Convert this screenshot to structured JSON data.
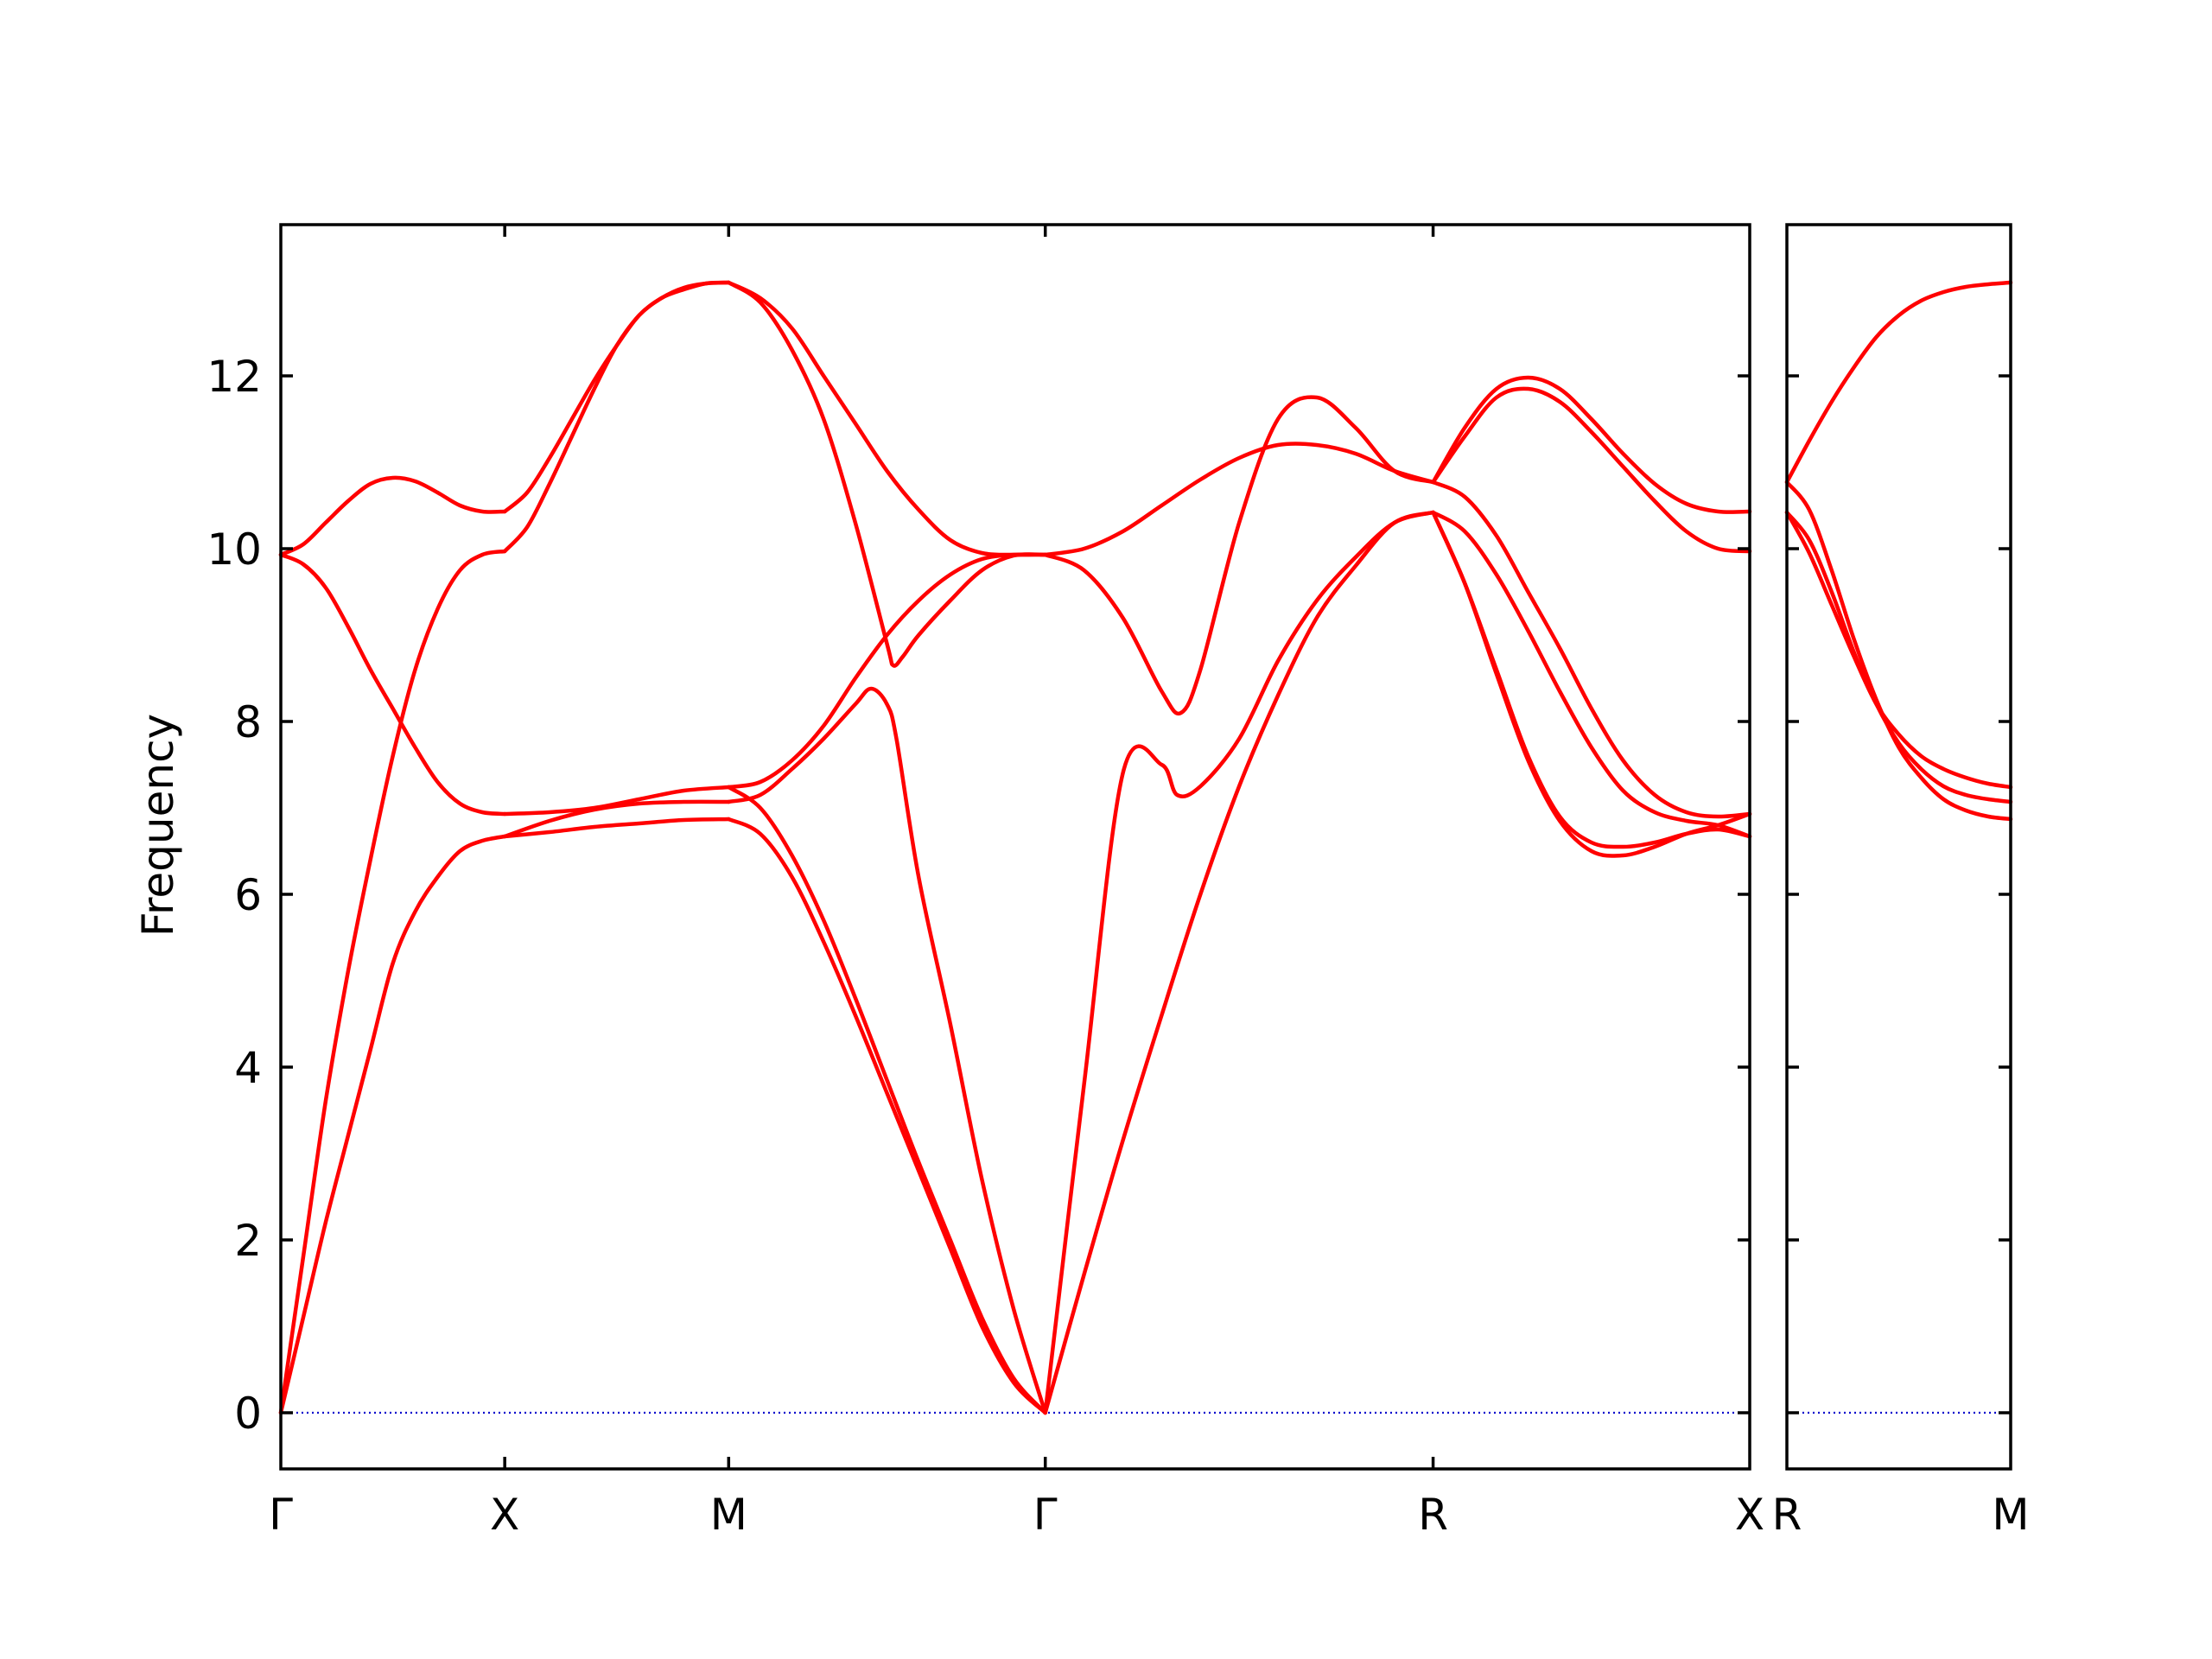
{
  "chart_data": {
    "type": "line",
    "ylabel": "Frequency",
    "xlabel": "",
    "ylim": [
      -0.65,
      13.75
    ],
    "yticks": [
      0,
      2,
      4,
      6,
      8,
      10,
      12
    ],
    "grid": false,
    "line_color": "#ff0000",
    "zero_line_color": "#0000cc",
    "panels": [
      {
        "segments": [
          {
            "from": "Γ",
            "to": "X",
            "length": 1.0,
            "bands": [
              {
                "x": [
                  0,
                  0.1,
                  0.2,
                  0.3,
                  0.4,
                  0.5,
                  0.6,
                  0.7,
                  0.8,
                  0.9,
                  1.0
                ],
                "y": [
                  0,
                  1.1,
                  2.2,
                  3.2,
                  4.2,
                  5.2,
                  5.8,
                  6.2,
                  6.5,
                  6.62,
                  6.67
                ]
              },
              {
                "x": [
                  0,
                  0.1,
                  0.2,
                  0.3,
                  0.4,
                  0.5,
                  0.6,
                  0.7,
                  0.8,
                  0.9,
                  1.0
                ],
                "y": [
                  0,
                  1.8,
                  3.6,
                  5.1,
                  6.4,
                  7.6,
                  8.6,
                  9.3,
                  9.75,
                  9.93,
                  9.97
                ]
              },
              {
                "x": [
                  0,
                  0.1,
                  0.2,
                  0.3,
                  0.4,
                  0.5,
                  0.6,
                  0.7,
                  0.8,
                  0.9,
                  1.0
                ],
                "y": [
                  9.93,
                  9.82,
                  9.55,
                  9.1,
                  8.6,
                  8.15,
                  7.7,
                  7.3,
                  7.05,
                  6.95,
                  6.93
                ]
              },
              {
                "x": [
                  0,
                  0.1,
                  0.2,
                  0.3,
                  0.4,
                  0.5,
                  0.6,
                  0.7,
                  0.8,
                  0.9,
                  1.0
                ],
                "y": [
                  9.93,
                  10.05,
                  10.3,
                  10.55,
                  10.75,
                  10.82,
                  10.78,
                  10.65,
                  10.5,
                  10.43,
                  10.43
                ]
              }
            ]
          },
          {
            "from": "X",
            "to": "M",
            "length": 1.0,
            "bands": [
              {
                "x": [
                  0,
                  0.2,
                  0.4,
                  0.6,
                  0.8,
                  1.0
                ],
                "y": [
                  6.67,
                  6.72,
                  6.78,
                  6.82,
                  6.86,
                  6.87
                ]
              },
              {
                "x": [
                  0,
                  0.2,
                  0.4,
                  0.6,
                  0.8,
                  1.0
                ],
                "y": [
                  6.67,
                  6.85,
                  6.98,
                  7.05,
                  7.07,
                  7.07
                ]
              },
              {
                "x": [
                  0,
                  0.2,
                  0.4,
                  0.6,
                  0.8,
                  1.0
                ],
                "y": [
                  6.93,
                  6.95,
                  7.0,
                  7.1,
                  7.2,
                  7.24
                ]
              },
              {
                "x": [
                  0,
                  0.1,
                  0.2,
                  0.3,
                  0.4,
                  0.5,
                  0.6,
                  0.7,
                  0.8,
                  0.9,
                  1.0
                ],
                "y": [
                  9.97,
                  10.25,
                  10.75,
                  11.3,
                  11.85,
                  12.35,
                  12.7,
                  12.9,
                  13.0,
                  13.07,
                  13.08
                ]
              },
              {
                "x": [
                  0,
                  0.1,
                  0.2,
                  0.3,
                  0.4,
                  0.5,
                  0.6,
                  0.7,
                  0.8,
                  0.9,
                  1.0
                ],
                "y": [
                  10.43,
                  10.65,
                  11.05,
                  11.5,
                  11.95,
                  12.35,
                  12.7,
                  12.9,
                  13.02,
                  13.07,
                  13.08
                ]
              }
            ]
          },
          {
            "from": "M",
            "to": "Γ",
            "length": 1.414,
            "bands": [
              {
                "x": [
                  0,
                  0.1,
                  0.2,
                  0.3,
                  0.4,
                  0.5,
                  0.6,
                  0.7,
                  0.8,
                  0.9,
                  1.0
                ],
                "y": [
                  6.87,
                  6.7,
                  6.2,
                  5.45,
                  4.6,
                  3.7,
                  2.8,
                  1.9,
                  1.0,
                  0.35,
                  0
                ]
              },
              {
                "x": [
                  0,
                  0.1,
                  0.2,
                  0.3,
                  0.4,
                  0.5,
                  0.6,
                  0.7,
                  0.8,
                  0.9,
                  1.0
                ],
                "y": [
                  7.24,
                  7.0,
                  6.45,
                  5.7,
                  4.8,
                  3.85,
                  2.9,
                  2.0,
                  1.1,
                  0.4,
                  0
                ]
              },
              {
                "x": [
                  0,
                  0.1,
                  0.2,
                  0.3,
                  0.4,
                  0.45,
                  0.5,
                  0.53,
                  0.6,
                  0.7,
                  0.8,
                  0.9,
                  1.0
                ],
                "y": [
                  7.07,
                  7.15,
                  7.45,
                  7.8,
                  8.2,
                  8.38,
                  8.2,
                  7.8,
                  6.2,
                  4.5,
                  2.7,
                  1.2,
                  0
                ]
              },
              {
                "x": [
                  0,
                  0.1,
                  0.2,
                  0.3,
                  0.4,
                  0.5,
                  0.6,
                  0.7,
                  0.8,
                  0.9,
                  1.0
                ],
                "y": [
                  7.24,
                  7.3,
                  7.55,
                  7.95,
                  8.5,
                  9.0,
                  9.4,
                  9.7,
                  9.88,
                  9.93,
                  9.93
                ]
              },
              {
                "x": [
                  0,
                  0.1,
                  0.2,
                  0.3,
                  0.4,
                  0.5,
                  0.52,
                  0.55,
                  0.6,
                  0.7,
                  0.8,
                  0.9,
                  1.0
                ],
                "y": [
                  13.08,
                  12.85,
                  12.3,
                  11.5,
                  10.3,
                  8.9,
                  8.65,
                  8.75,
                  9.0,
                  9.4,
                  9.75,
                  9.92,
                  9.93
                ]
              },
              {
                "x": [
                  0,
                  0.1,
                  0.2,
                  0.3,
                  0.4,
                  0.5,
                  0.6,
                  0.7,
                  0.8,
                  0.9,
                  1.0
                ],
                "y": [
                  13.08,
                  12.9,
                  12.55,
                  12.0,
                  11.45,
                  10.9,
                  10.45,
                  10.1,
                  9.95,
                  9.93,
                  9.93
                ]
              }
            ]
          },
          {
            "from": "Γ",
            "to": "R",
            "length": 1.732,
            "bands": [
              {
                "x": [
                  0,
                  0.1,
                  0.2,
                  0.3,
                  0.4,
                  0.5,
                  0.6,
                  0.7,
                  0.8,
                  0.9,
                  1.0
                ],
                "y": [
                  0,
                  1.6,
                  3.15,
                  4.6,
                  6.0,
                  7.25,
                  8.3,
                  9.2,
                  9.8,
                  10.3,
                  10.42
                ]
              },
              {
                "x": [
                  0,
                  0.1,
                  0.2,
                  0.3,
                  0.34,
                  0.4,
                  0.5,
                  0.6,
                  0.7,
                  0.8,
                  0.9,
                  1.0
                ],
                "y": [
                  0,
                  3.8,
                  7.4,
                  7.5,
                  7.15,
                  7.25,
                  7.8,
                  8.7,
                  9.4,
                  9.9,
                  10.3,
                  10.42
                ]
              },
              {
                "x": [
                  0,
                  0.1,
                  0.2,
                  0.3,
                  0.35,
                  0.4,
                  0.5,
                  0.6,
                  0.7,
                  0.8,
                  0.9,
                  1.0
                ],
                "y": [
                  9.93,
                  9.75,
                  9.2,
                  8.35,
                  8.1,
                  8.6,
                  10.3,
                  11.5,
                  11.75,
                  11.4,
                  10.9,
                  10.77
                ]
              },
              {
                "x": [
                  0,
                  0.1,
                  0.2,
                  0.3,
                  0.4,
                  0.5,
                  0.6,
                  0.7,
                  0.8,
                  0.9,
                  1.0
                ],
                "y": [
                  9.93,
                  10.0,
                  10.2,
                  10.5,
                  10.8,
                  11.05,
                  11.2,
                  11.2,
                  11.1,
                  10.9,
                  10.77
                ]
              }
            ]
          },
          {
            "from": "R",
            "to": "X",
            "length": 1.414,
            "bands": [
              {
                "x": [
                  0,
                  0.1,
                  0.2,
                  0.3,
                  0.4,
                  0.5,
                  0.6,
                  0.7,
                  0.8,
                  0.9,
                  1.0
                ],
                "y": [
                  10.42,
                  9.6,
                  8.55,
                  7.55,
                  6.85,
                  6.5,
                  6.45,
                  6.55,
                  6.7,
                  6.8,
                  6.93
                ]
              },
              {
                "x": [
                  0,
                  0.1,
                  0.2,
                  0.3,
                  0.4,
                  0.5,
                  0.6,
                  0.7,
                  0.8,
                  0.9,
                  1.0
                ],
                "y": [
                  10.42,
                  9.6,
                  8.6,
                  7.6,
                  6.9,
                  6.6,
                  6.55,
                  6.6,
                  6.7,
                  6.75,
                  6.67
                ]
              },
              {
                "x": [
                  0,
                  0.1,
                  0.2,
                  0.3,
                  0.4,
                  0.5,
                  0.6,
                  0.7,
                  0.8,
                  0.9,
                  1.0
                ],
                "y": [
                  10.42,
                  10.2,
                  9.7,
                  9.05,
                  8.35,
                  7.7,
                  7.2,
                  6.95,
                  6.85,
                  6.8,
                  6.67
                ]
              },
              {
                "x": [
                  0,
                  0.1,
                  0.2,
                  0.3,
                  0.4,
                  0.5,
                  0.6,
                  0.7,
                  0.8,
                  0.9,
                  1.0
                ],
                "y": [
                  10.77,
                  10.6,
                  10.15,
                  9.5,
                  8.85,
                  8.15,
                  7.55,
                  7.15,
                  6.95,
                  6.9,
                  6.93
                ]
              },
              {
                "x": [
                  0,
                  0.1,
                  0.2,
                  0.3,
                  0.4,
                  0.5,
                  0.6,
                  0.7,
                  0.8,
                  0.9,
                  1.0
                ],
                "y": [
                  10.77,
                  11.3,
                  11.75,
                  11.85,
                  11.7,
                  11.35,
                  10.95,
                  10.55,
                  10.2,
                  10.0,
                  9.97
                ]
              },
              {
                "x": [
                  0,
                  0.1,
                  0.2,
                  0.3,
                  0.4,
                  0.5,
                  0.6,
                  0.7,
                  0.8,
                  0.9,
                  1.0
                ],
                "y": [
                  10.77,
                  11.4,
                  11.85,
                  11.98,
                  11.85,
                  11.5,
                  11.1,
                  10.75,
                  10.52,
                  10.43,
                  10.43
                ]
              }
            ]
          }
        ],
        "tick_labels": [
          "Γ",
          "X",
          "M",
          "Γ",
          "R",
          "X"
        ]
      },
      {
        "segments": [
          {
            "from": "R",
            "to": "M",
            "length": 1.0,
            "bands": [
              {
                "x": [
                  0,
                  0.1,
                  0.2,
                  0.3,
                  0.4,
                  0.5,
                  0.6,
                  0.7,
                  0.8,
                  0.9,
                  1.0
                ],
                "y": [
                  10.42,
                  9.95,
                  9.35,
                  8.75,
                  8.2,
                  7.85,
                  7.6,
                  7.45,
                  7.35,
                  7.28,
                  7.24
                ]
              },
              {
                "x": [
                  0,
                  0.1,
                  0.2,
                  0.3,
                  0.4,
                  0.5,
                  0.6,
                  0.7,
                  0.8,
                  0.9,
                  1.0
                ],
                "y": [
                  10.42,
                  10.1,
                  9.5,
                  8.8,
                  8.2,
                  7.75,
                  7.45,
                  7.25,
                  7.15,
                  7.1,
                  7.07
                ]
              },
              {
                "x": [
                  0,
                  0.1,
                  0.2,
                  0.3,
                  0.4,
                  0.5,
                  0.6,
                  0.7,
                  0.8,
                  0.9,
                  1.0
                ],
                "y": [
                  10.77,
                  10.45,
                  9.75,
                  8.95,
                  8.25,
                  7.7,
                  7.35,
                  7.1,
                  6.97,
                  6.9,
                  6.87
                ]
              },
              {
                "x": [
                  0,
                  0.1,
                  0.2,
                  0.3,
                  0.4,
                  0.5,
                  0.6,
                  0.7,
                  0.8,
                  0.9,
                  1.0
                ],
                "y": [
                  10.77,
                  11.25,
                  11.7,
                  12.1,
                  12.45,
                  12.7,
                  12.87,
                  12.97,
                  13.03,
                  13.06,
                  13.08
                ]
              }
            ]
          }
        ],
        "tick_labels": [
          "R",
          "M"
        ]
      }
    ]
  }
}
